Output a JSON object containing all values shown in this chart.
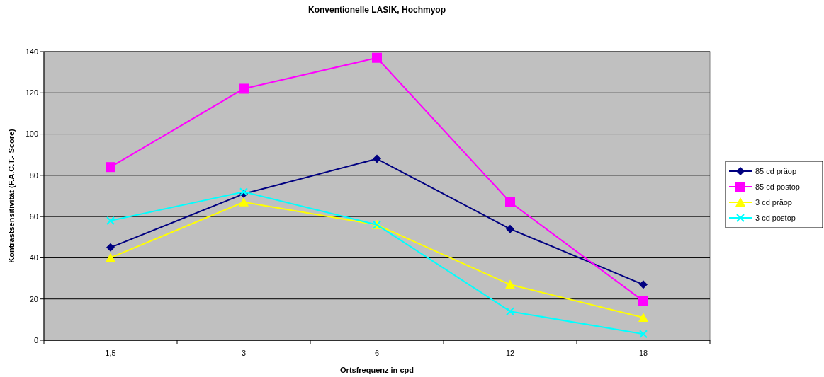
{
  "chart_data": {
    "type": "line",
    "title": "Konventionelle LASIK, Hochmyop",
    "xlabel": "Ortsfrequenz in cpd",
    "ylabel": "Kontrastsensitivität (F.A.C.T.- Score)",
    "categories": [
      "1,5",
      "3",
      "6",
      "12",
      "18"
    ],
    "ylim": [
      0,
      140
    ],
    "yticks": [
      0,
      20,
      40,
      60,
      80,
      100,
      120,
      140
    ],
    "grid": "y",
    "legend": "right",
    "series": [
      {
        "name": "85 cd präop",
        "color": "#000080",
        "marker": "diamond",
        "values": [
          45,
          71,
          88,
          54,
          27
        ]
      },
      {
        "name": "85 cd postop",
        "color": "#ff00ff",
        "marker": "square",
        "values": [
          84,
          122,
          137,
          67,
          19
        ]
      },
      {
        "name": "3 cd präop",
        "color": "#ffff00",
        "marker": "triangle",
        "values": [
          40,
          67,
          56,
          27,
          11
        ]
      },
      {
        "name": "3 cd postop",
        "color": "#00ffff",
        "marker": "cross",
        "values": [
          58,
          72,
          56,
          14,
          3
        ]
      }
    ]
  }
}
